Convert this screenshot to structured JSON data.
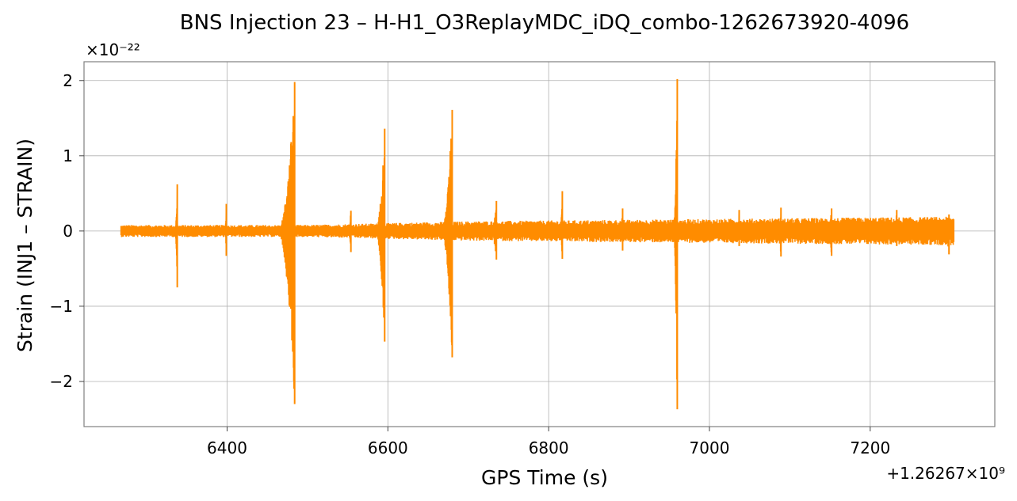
{
  "chart_data": {
    "type": "line",
    "title": "BNS Injection 23 – H-H1_O3ReplayMDC_iDQ_combo-1262673920-4096",
    "xlabel": "GPS Time (s)",
    "ylabel": "Strain (INJ1 – STRAIN)",
    "x_offset_label": "+1.26267×10⁹",
    "y_scale_label": "×10⁻²²",
    "xlim": [
      6222,
      7355
    ],
    "ylim": [
      -2.6,
      2.25
    ],
    "xticks": [
      6400,
      6600,
      6800,
      7000,
      7200
    ],
    "xtick_labels": [
      "6400",
      "6600",
      "6800",
      "7000",
      "7200"
    ],
    "yticks": [
      -2,
      -1,
      0,
      1,
      2
    ],
    "ytick_labels": [
      "−2",
      "−1",
      "0",
      "1",
      "2"
    ],
    "grid": true,
    "color": "#ff8c00",
    "x_range": [
      6268,
      7304
    ],
    "baseline_envelope": [
      {
        "x": 6268,
        "upper": 0.08,
        "lower": -0.08
      },
      {
        "x": 6500,
        "upper": 0.08,
        "lower": -0.08
      },
      {
        "x": 6700,
        "upper": 0.13,
        "lower": -0.13
      },
      {
        "x": 6900,
        "upper": 0.15,
        "lower": -0.15
      },
      {
        "x": 7100,
        "upper": 0.17,
        "lower": -0.17
      },
      {
        "x": 7304,
        "upper": 0.19,
        "lower": -0.19
      }
    ],
    "glitches": [
      {
        "x": 6338,
        "max": 0.62,
        "min": -0.75,
        "width": 3
      },
      {
        "x": 6399,
        "max": 0.36,
        "min": -0.33,
        "width": 2
      },
      {
        "x": 6484,
        "max": 1.98,
        "min": -2.3,
        "width": 22
      },
      {
        "x": 6554,
        "max": 0.27,
        "min": -0.28,
        "width": 3
      },
      {
        "x": 6596,
        "max": 1.36,
        "min": -1.47,
        "width": 12
      },
      {
        "x": 6680,
        "max": 1.61,
        "min": -1.68,
        "width": 14
      },
      {
        "x": 6735,
        "max": 0.4,
        "min": -0.38,
        "width": 8
      },
      {
        "x": 6817,
        "max": 0.53,
        "min": -0.37,
        "width": 3
      },
      {
        "x": 6892,
        "max": 0.3,
        "min": -0.26,
        "width": 3
      },
      {
        "x": 6960,
        "max": 2.02,
        "min": -2.37,
        "width": 5
      },
      {
        "x": 7037,
        "max": 0.28,
        "min": -0.2,
        "width": 3
      },
      {
        "x": 7089,
        "max": 0.31,
        "min": -0.34,
        "width": 4
      },
      {
        "x": 7152,
        "max": 0.3,
        "min": -0.33,
        "width": 6
      },
      {
        "x": 7233,
        "max": 0.28,
        "min": -0.2,
        "width": 3
      },
      {
        "x": 7298,
        "max": 0.22,
        "min": -0.31,
        "width": 6
      }
    ]
  }
}
